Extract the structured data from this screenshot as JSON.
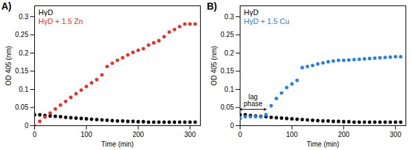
{
  "chart_data": [
    {
      "type": "scatter",
      "title": "A)",
      "xlabel": "Time (min)",
      "ylabel": "OD 405 (nm)",
      "xlim": [
        0,
        320
      ],
      "xticks": [
        0,
        100,
        200,
        300
      ],
      "ylim": [
        0,
        0.33
      ],
      "yticks": [
        0,
        0.05,
        0.1,
        0.15,
        0.2,
        0.25,
        0.3
      ],
      "legend": "upper left",
      "marker": "circle",
      "x": [
        0,
        10,
        20,
        30,
        40,
        50,
        60,
        70,
        80,
        90,
        100,
        110,
        120,
        130,
        140,
        150,
        160,
        170,
        180,
        190,
        200,
        210,
        220,
        230,
        240,
        250,
        260,
        270,
        280,
        290,
        300,
        310
      ],
      "series": [
        {
          "name": "HγD",
          "color": "#000000",
          "values": [
            0.03,
            0.03,
            0.028,
            0.027,
            0.026,
            0.025,
            0.023,
            0.022,
            0.021,
            0.02,
            0.019,
            0.018,
            0.017,
            0.016,
            0.015,
            0.014,
            0.013,
            0.013,
            0.012,
            0.012,
            0.011,
            0.011,
            0.01,
            0.01,
            0.01,
            0.01,
            0.01,
            0.01,
            0.01,
            0.01,
            0.01,
            0.01
          ]
        },
        {
          "name": "HγD + 1.5 Zn",
          "color": "#e8302a",
          "values": [
            0.0,
            0.012,
            0.024,
            0.035,
            0.046,
            0.057,
            0.067,
            0.078,
            0.088,
            0.098,
            0.108,
            0.118,
            0.127,
            0.14,
            0.163,
            0.172,
            0.18,
            0.187,
            0.195,
            0.202,
            0.208,
            0.212,
            0.222,
            0.228,
            0.234,
            0.245,
            0.258,
            0.265,
            0.273,
            0.28,
            0.28,
            0.28
          ]
        }
      ]
    },
    {
      "type": "scatter",
      "title": "B)",
      "xlabel": "Time (min)",
      "ylabel": "OD 405 (nm)",
      "xlim": [
        0,
        320
      ],
      "xticks": [
        0,
        100,
        200,
        300
      ],
      "ylim": [
        0,
        0.33
      ],
      "yticks": [
        0,
        0.05,
        0.1,
        0.15,
        0.2,
        0.25,
        0.3
      ],
      "legend": "upper left",
      "marker": "circle",
      "annotations": [
        {
          "text": "lag phase",
          "x_start": 0,
          "x_end": 50,
          "y": 0.045
        }
      ],
      "x": [
        0,
        10,
        20,
        30,
        40,
        50,
        60,
        70,
        80,
        90,
        100,
        110,
        120,
        130,
        140,
        150,
        160,
        170,
        180,
        190,
        200,
        210,
        220,
        230,
        240,
        250,
        260,
        270,
        280,
        290,
        300,
        310
      ],
      "series": [
        {
          "name": "HγD",
          "color": "#000000",
          "values": [
            0.03,
            0.03,
            0.028,
            0.027,
            0.026,
            0.025,
            0.023,
            0.022,
            0.021,
            0.02,
            0.019,
            0.018,
            0.017,
            0.016,
            0.015,
            0.014,
            0.013,
            0.013,
            0.012,
            0.012,
            0.011,
            0.011,
            0.01,
            0.01,
            0.01,
            0.01,
            0.01,
            0.01,
            0.01,
            0.01,
            0.01,
            0.01
          ]
        },
        {
          "name": "HγD + 1.5 Cu",
          "color": "#2a7de1",
          "values": [
            0.02,
            0.025,
            0.025,
            0.025,
            0.025,
            0.03,
            0.055,
            0.075,
            0.09,
            0.105,
            0.115,
            0.125,
            0.16,
            0.163,
            0.166,
            0.17,
            0.173,
            0.176,
            0.178,
            0.18,
            0.18,
            0.181,
            0.182,
            0.183,
            0.184,
            0.185,
            0.186,
            0.187,
            0.188,
            0.189,
            0.19,
            0.19
          ]
        }
      ]
    }
  ]
}
